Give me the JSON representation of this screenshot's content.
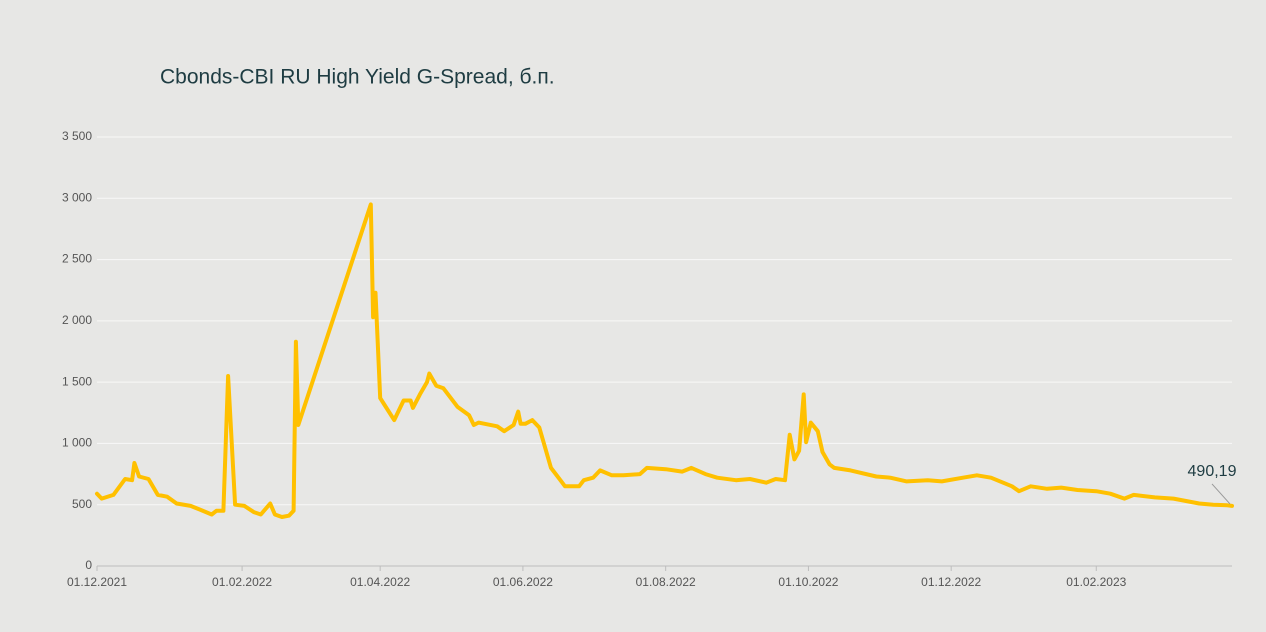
{
  "chart_data": {
    "type": "line",
    "title": "Cbonds-CBI RU High Yield G-Spread, б.п.",
    "x": [
      "01.12.2021",
      "03.12.2021",
      "08.12.2021",
      "13.12.2021",
      "16.12.2021",
      "17.12.2021",
      "19.12.2021",
      "23.12.2021",
      "27.12.2021",
      "31.12.2021",
      "04.01.2022",
      "10.01.2022",
      "14.01.2022",
      "19.01.2022",
      "21.01.2022",
      "24.01.2022",
      "26.01.2022",
      "29.01.2022",
      "02.02.2022",
      "06.02.2022",
      "09.02.2022",
      "13.02.2022",
      "15.02.2022",
      "18.02.2022",
      "21.02.2022",
      "23.02.2022",
      "24.02.2022",
      "25.02.2022",
      "28.03.2022",
      "29.03.2022",
      "30.03.2022",
      "01.04.2022",
      "07.04.2022",
      "11.04.2022",
      "14.04.2022",
      "15.04.2022",
      "18.04.2022",
      "21.04.2022",
      "22.04.2022",
      "25.04.2022",
      "28.04.2022",
      "04.05.2022",
      "09.05.2022",
      "11.05.2022",
      "13.05.2022",
      "21.05.2022",
      "24.05.2022",
      "28.05.2022",
      "30.05.2022",
      "31.05.2022",
      "02.06.2022",
      "05.06.2022",
      "08.06.2022",
      "13.06.2022",
      "17.06.2022",
      "19.06.2022",
      "25.06.2022",
      "27.06.2022",
      "01.07.2022",
      "04.07.2022",
      "09.07.2022",
      "14.07.2022",
      "21.07.2022",
      "24.07.2022",
      "01.08.2022",
      "08.08.2022",
      "12.08.2022",
      "18.08.2022",
      "23.08.2022",
      "31.08.2022",
      "06.09.2022",
      "13.09.2022",
      "17.09.2022",
      "21.09.2022",
      "23.09.2022",
      "25.09.2022",
      "27.09.2022",
      "29.09.2022",
      "30.09.2022",
      "02.10.2022",
      "05.10.2022",
      "07.10.2022",
      "10.10.2022",
      "12.10.2022",
      "19.10.2022",
      "30.10.2022",
      "05.11.2022",
      "12.11.2022",
      "21.11.2022",
      "27.11.2022",
      "06.12.2022",
      "12.12.2022",
      "18.12.2022",
      "27.12.2022",
      "30.12.2022",
      "04.01.2023",
      "11.01.2023",
      "17.01.2023",
      "24.01.2023",
      "01.02.2023",
      "07.02.2023",
      "13.02.2023",
      "17.02.2023",
      "26.02.2023",
      "06.03.2023",
      "17.03.2023",
      "23.03.2023",
      "29.03.2023",
      "31.03.2023"
    ],
    "series": [
      {
        "color": "#ffc000",
        "values": [
          590,
          550,
          580,
          710,
          700,
          840,
          730,
          710,
          580,
          565,
          510,
          490,
          460,
          420,
          450,
          450,
          1550,
          500,
          490,
          440,
          420,
          510,
          420,
          400,
          410,
          450,
          1830,
          1150,
          2950,
          2030,
          2230,
          1370,
          1190,
          1350,
          1350,
          1290,
          1400,
          1500,
          1570,
          1470,
          1450,
          1300,
          1230,
          1150,
          1170,
          1140,
          1100,
          1150,
          1260,
          1160,
          1160,
          1190,
          1130,
          800,
          700,
          650,
          650,
          700,
          720,
          780,
          740,
          740,
          750,
          800,
          790,
          770,
          800,
          750,
          720,
          700,
          710,
          680,
          710,
          700,
          1070,
          870,
          940,
          1400,
          1010,
          1170,
          1100,
          930,
          830,
          800,
          780,
          730,
          720,
          690,
          700,
          690,
          720,
          740,
          720,
          650,
          610,
          650,
          630,
          640,
          620,
          610,
          590,
          550,
          580,
          560,
          550,
          510,
          500,
          495,
          490.19
        ],
        "value_labels": [
          null,
          null,
          null,
          null,
          null,
          null,
          null,
          null,
          null,
          null,
          null,
          null,
          null,
          null,
          null,
          null,
          null,
          null,
          null,
          null,
          null,
          null,
          null,
          null,
          null,
          null,
          null,
          null,
          null,
          null,
          null,
          null,
          null,
          null,
          null,
          null,
          null,
          null,
          null,
          null,
          null,
          null,
          null,
          null,
          null,
          null,
          null,
          null,
          null,
          null,
          null,
          null,
          null,
          null,
          null,
          null,
          null,
          null,
          null,
          null,
          null,
          null,
          null,
          null,
          null,
          null,
          null,
          null,
          null,
          null,
          null,
          null,
          null,
          null,
          null,
          null,
          null,
          null,
          null,
          null,
          null,
          null,
          null,
          null,
          null,
          null,
          null,
          null,
          null,
          null,
          null,
          null,
          null,
          null,
          null,
          null,
          null,
          null,
          null,
          null,
          null,
          null,
          null,
          null,
          null,
          null,
          null,
          null,
          "490,19"
        ]
      }
    ],
    "xlim": [
      "01.12.2021",
      "31.03.2023"
    ],
    "xticks": [
      "01.12.2021",
      "01.02.2022",
      "01.04.2022",
      "01.06.2022",
      "01.08.2022",
      "01.10.2022",
      "01.12.2022",
      "01.02.2023"
    ],
    "ylim": [
      0,
      3500
    ],
    "yticks": [
      0,
      500,
      {
        "value": 1000,
        "label": "1 000"
      },
      {
        "value": 1500,
        "label": "1 500"
      },
      {
        "value": 2000,
        "label": "2 000"
      },
      {
        "value": 2500,
        "label": "2 500"
      },
      {
        "value": 3000,
        "label": "3 000"
      },
      {
        "value": 3500,
        "label": "3 500"
      }
    ],
    "grid": true
  }
}
